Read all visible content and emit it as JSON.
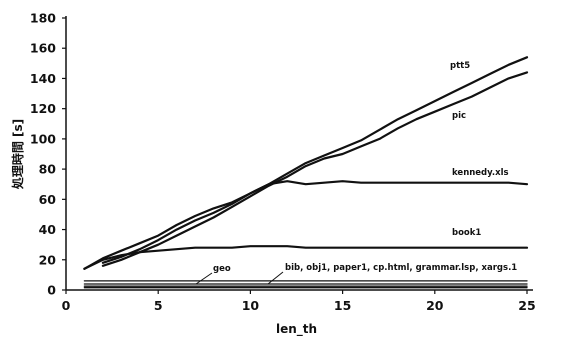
{
  "chart_data": {
    "type": "line",
    "xlabel": "len_th",
    "ylabel": "処理時間 [s]",
    "xlim": [
      0,
      25
    ],
    "ylim": [
      0,
      180
    ],
    "xticks": [
      0,
      5,
      10,
      15,
      20,
      25
    ],
    "yticks": [
      0,
      20,
      40,
      60,
      80,
      100,
      120,
      140,
      160,
      180
    ],
    "grid": false,
    "series": [
      {
        "name": "ptt5",
        "x": [
          1,
          2,
          3,
          4,
          5,
          6,
          7,
          8,
          9,
          10,
          11,
          12,
          13,
          14,
          15,
          16,
          17,
          18,
          19,
          20,
          21,
          22,
          23,
          24,
          25
        ],
        "values": [
          14,
          21,
          26,
          31,
          36,
          43,
          49,
          54,
          58,
          64,
          70,
          77,
          84,
          89,
          94,
          99,
          106,
          113,
          119,
          125,
          131,
          137,
          143,
          149,
          154
        ]
      },
      {
        "name": "pic",
        "x": [
          2,
          3,
          4,
          5,
          6,
          7,
          8,
          9,
          10,
          11,
          12,
          13,
          14,
          15,
          16,
          17,
          18,
          19,
          20,
          21,
          22,
          23,
          24,
          25
        ],
        "values": [
          16,
          20,
          25,
          30,
          36,
          42,
          48,
          55,
          62,
          69,
          75,
          82,
          87,
          90,
          95,
          100,
          107,
          113,
          118,
          123,
          128,
          134,
          140,
          144
        ]
      },
      {
        "name": "kennedy.xls",
        "x": [
          2,
          3,
          4,
          5,
          6,
          7,
          8,
          9,
          10,
          11,
          12,
          13,
          14,
          15,
          16,
          17,
          18,
          19,
          20,
          21,
          22,
          23,
          24,
          25
        ],
        "values": [
          18,
          22,
          27,
          33,
          40,
          46,
          51,
          57,
          64,
          70,
          72,
          70,
          71,
          72,
          71,
          71,
          71,
          71,
          71,
          71,
          71,
          71,
          71,
          70
        ]
      },
      {
        "name": "book1",
        "x": [
          1,
          2,
          3,
          4,
          5,
          6,
          7,
          8,
          9,
          10,
          11,
          12,
          13,
          14,
          15,
          16,
          17,
          18,
          19,
          20,
          21,
          22,
          23,
          24,
          25
        ],
        "values": [
          14,
          20,
          23,
          25,
          26,
          27,
          28,
          28,
          28,
          29,
          29,
          29,
          28,
          28,
          28,
          28,
          28,
          28,
          28,
          28,
          28,
          28,
          28,
          28,
          28
        ]
      },
      {
        "name": "geo",
        "x": [
          1,
          5,
          10,
          15,
          20,
          25
        ],
        "values": [
          6,
          6,
          6,
          6,
          6,
          6
        ]
      },
      {
        "name": "bib, obj1, paper1, cp.html, grammar.lsp, xargs.1",
        "x": [
          1,
          5,
          10,
          15,
          20,
          25
        ],
        "values": [
          4,
          4,
          4,
          4,
          4,
          4
        ]
      },
      {
        "name": "",
        "x": [
          1,
          5,
          10,
          15,
          20,
          25
        ],
        "values": [
          2.5,
          2.5,
          2.5,
          2.5,
          2.5,
          2.5
        ]
      },
      {
        "name": "",
        "x": [
          1,
          5,
          10,
          15,
          20,
          25
        ],
        "values": [
          1.5,
          1.5,
          1.5,
          1.5,
          1.5,
          1.5
        ]
      }
    ],
    "annotations": [
      {
        "text": "ptt5",
        "series": 0
      },
      {
        "text": "pic",
        "series": 1
      },
      {
        "text": "kennedy.xls",
        "series": 2
      },
      {
        "text": "book1",
        "series": 3
      },
      {
        "text": "geo",
        "series": 4
      },
      {
        "text": "bib, obj1, paper1, cp.html, grammar.lsp, xargs.1",
        "series": 5
      }
    ]
  }
}
